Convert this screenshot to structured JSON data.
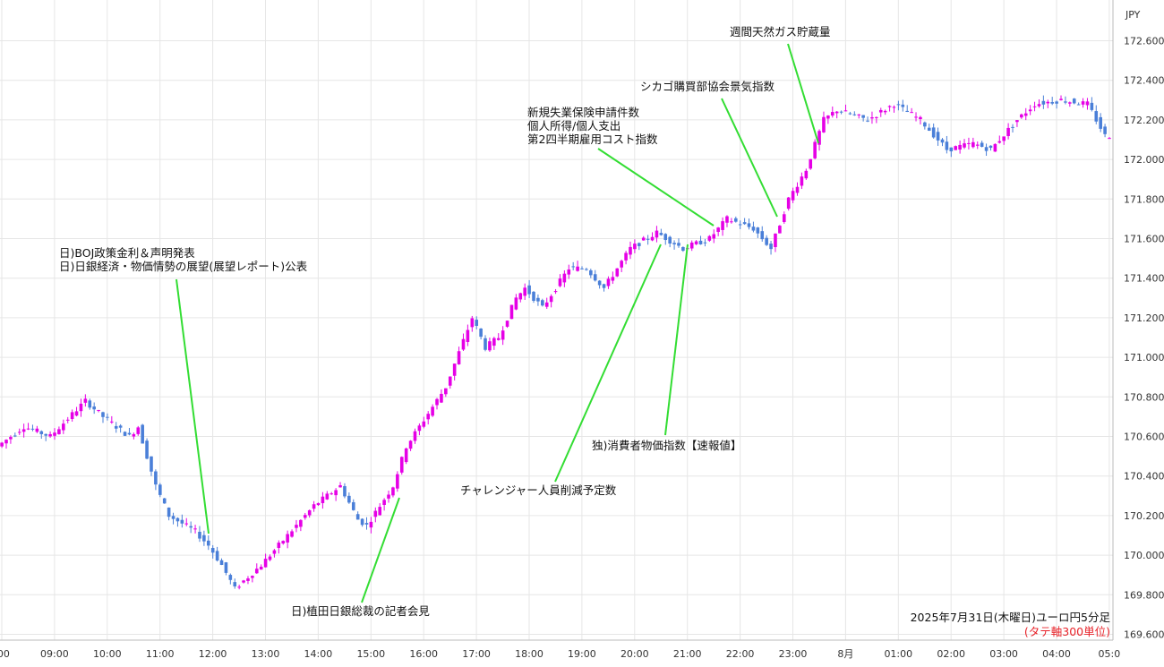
{
  "chart_data": {
    "type": "candlestick",
    "caption": "2025年7月31日(木曜日)ユーロ円5分足",
    "unit_note": "(タテ軸300単位)",
    "currency_label": "JPY",
    "ylim": [
      169.6,
      172.7
    ],
    "y_ticks": [
      "172.600",
      "172.400",
      "172.200",
      "172.000",
      "171.800",
      "171.600",
      "171.400",
      "171.200",
      "171.000",
      "170.800",
      "170.600",
      "170.400",
      "170.200",
      "170.000",
      "169.800",
      "169.600"
    ],
    "x_ticks": [
      ":00",
      "09:00",
      "10:00",
      "11:00",
      "12:00",
      "13:00",
      "14:00",
      "15:00",
      "16:00",
      "17:00",
      "18:00",
      "19:00",
      "20:00",
      "21:00",
      "22:00",
      "23:00",
      "8月",
      "01:00",
      "02:00",
      "03:00",
      "04:00",
      "05:0"
    ],
    "grid": true,
    "colors": {
      "up": "#e600e6",
      "down": "#4a7fd8",
      "grid": "#e6e6e6",
      "annotation_line": "#33dd33",
      "note": "#e8232a"
    },
    "price_path": [
      [
        "08:00",
        170.55
      ],
      [
        "08:30",
        170.65
      ],
      [
        "09:00",
        170.6
      ],
      [
        "09:40",
        170.78
      ],
      [
        "10:00",
        170.7
      ],
      [
        "10:30",
        170.6
      ],
      [
        "10:40",
        170.65
      ],
      [
        "11:00",
        170.35
      ],
      [
        "11:15",
        170.2
      ],
      [
        "11:45",
        170.12
      ],
      [
        "12:00",
        170.05
      ],
      [
        "12:15",
        169.95
      ],
      [
        "12:30",
        169.83
      ],
      [
        "13:00",
        169.95
      ],
      [
        "13:30",
        170.1
      ],
      [
        "14:00",
        170.25
      ],
      [
        "14:30",
        170.35
      ],
      [
        "14:50",
        170.18
      ],
      [
        "15:00",
        170.15
      ],
      [
        "15:30",
        170.35
      ],
      [
        "15:45",
        170.55
      ],
      [
        "16:00",
        170.65
      ],
      [
        "16:30",
        170.85
      ],
      [
        "17:00",
        171.2
      ],
      [
        "17:15",
        171.05
      ],
      [
        "17:30",
        171.1
      ],
      [
        "17:50",
        171.3
      ],
      [
        "18:00",
        171.35
      ],
      [
        "18:20",
        171.25
      ],
      [
        "18:50",
        171.45
      ],
      [
        "19:10",
        171.45
      ],
      [
        "19:30",
        171.35
      ],
      [
        "20:00",
        171.55
      ],
      [
        "20:30",
        171.63
      ],
      [
        "21:00",
        171.55
      ],
      [
        "21:30",
        171.6
      ],
      [
        "21:50",
        171.7
      ],
      [
        "22:20",
        171.65
      ],
      [
        "22:40",
        171.55
      ],
      [
        "23:00",
        171.8
      ],
      [
        "23:20",
        171.95
      ],
      [
        "23:40",
        172.2
      ],
      [
        "23:55",
        172.25
      ],
      [
        "00:30",
        172.2
      ],
      [
        "01:00",
        172.28
      ],
      [
        "01:30",
        172.2
      ],
      [
        "02:00",
        172.05
      ],
      [
        "02:30",
        172.08
      ],
      [
        "02:50",
        172.05
      ],
      [
        "03:20",
        172.2
      ],
      [
        "03:40",
        172.28
      ],
      [
        "04:10",
        172.3
      ],
      [
        "04:40",
        172.28
      ],
      [
        "05:00",
        172.12
      ]
    ],
    "annotations": [
      {
        "lines": [
          "日)BOJ政策金利＆声明発表",
          "日)日銀経済・物価情勢の展望(展望レポート)公表"
        ]
      },
      {
        "lines": [
          "日)植田日銀総裁の記者会見"
        ]
      },
      {
        "lines": [
          "チャレンジャー人員削減予定数"
        ]
      },
      {
        "lines": [
          "独)消費者物価指数【速報値】"
        ]
      },
      {
        "lines": [
          "新規失業保険申請件数",
          "個人所得/個人支出",
          "第2四半期雇用コスト指数"
        ]
      },
      {
        "lines": [
          "シカゴ購買部協会景気指数"
        ]
      },
      {
        "lines": [
          "週間天然ガス貯蔵量"
        ]
      }
    ]
  }
}
